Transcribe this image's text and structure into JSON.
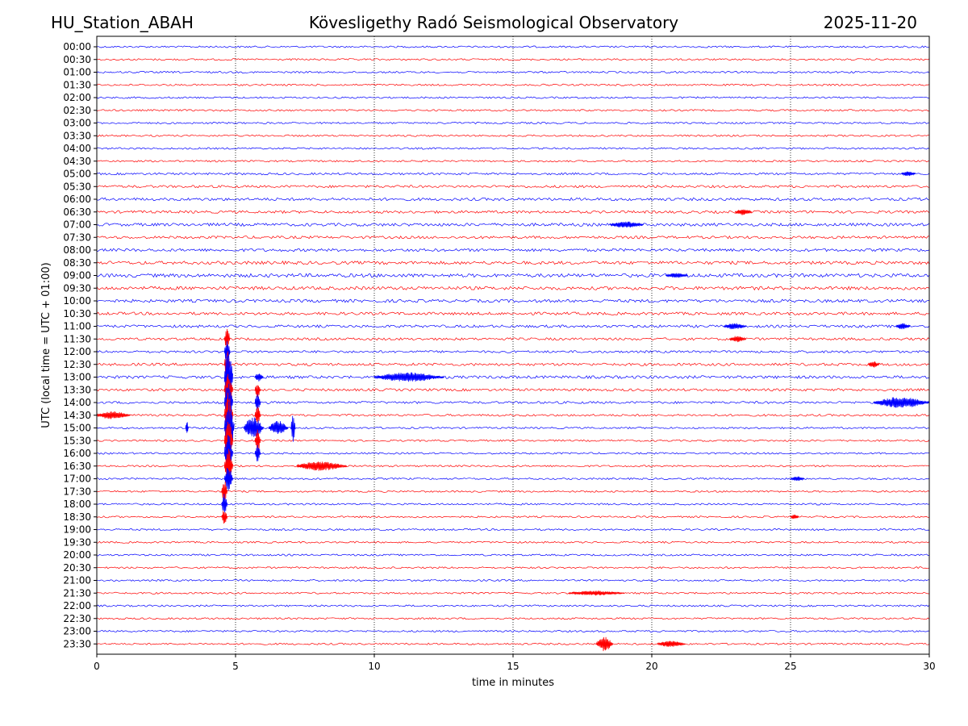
{
  "header": {
    "station": "HU_Station_ABAH",
    "observatory": "Kövesligethy Radó Seismological Observatory",
    "date": "2025-11-20"
  },
  "colors": {
    "odd": "#0000ff",
    "even": "#ff0000",
    "frame": "#000000",
    "grid": "#000000"
  },
  "chart_data": {
    "type": "line",
    "title": "Kövesligethy Radó Seismological Observatory",
    "xlabel": "time in minutes",
    "ylabel": "UTC (local time = UTC + 01:00)",
    "xlim": [
      0,
      30
    ],
    "xticks": [
      0,
      5,
      10,
      15,
      20,
      25,
      30
    ],
    "grid_x": [
      5,
      10,
      15,
      20,
      25
    ],
    "row_labels": [
      "00:00",
      "00:30",
      "01:00",
      "01:30",
      "02:00",
      "02:30",
      "03:00",
      "03:30",
      "04:00",
      "04:30",
      "05:00",
      "05:30",
      "06:00",
      "06:30",
      "07:00",
      "07:30",
      "08:00",
      "08:30",
      "09:00",
      "09:30",
      "10:00",
      "10:30",
      "11:00",
      "11:30",
      "12:00",
      "12:30",
      "13:00",
      "13:30",
      "14:00",
      "14:30",
      "15:00",
      "15:30",
      "16:00",
      "16:30",
      "17:00",
      "17:30",
      "18:00",
      "18:30",
      "19:00",
      "19:30",
      "20:00",
      "20:30",
      "21:00",
      "21:30",
      "22:00",
      "22:30",
      "23:00",
      "23:30"
    ],
    "row_noise": [
      1.0,
      1.0,
      1.0,
      1.0,
      1.0,
      1.0,
      1.0,
      1.0,
      1.0,
      1.0,
      1.2,
      1.4,
      1.6,
      1.5,
      1.7,
      1.5,
      1.6,
      1.8,
      2.0,
      1.9,
      1.7,
      1.6,
      1.5,
      1.4,
      1.3,
      1.5,
      1.6,
      1.4,
      1.3,
      1.2,
      1.0,
      1.0,
      1.0,
      1.0,
      1.0,
      1.0,
      1.0,
      1.0,
      1.0,
      1.0,
      1.0,
      1.0,
      1.0,
      1.0,
      1.0,
      1.0,
      1.0,
      1.0
    ],
    "events": [
      {
        "row": 10,
        "t": 29.0,
        "amp": 3,
        "dur": 0.5
      },
      {
        "row": 13,
        "t": 23.0,
        "amp": 4,
        "dur": 0.6
      },
      {
        "row": 14,
        "t": 18.5,
        "amp": 4,
        "dur": 1.2
      },
      {
        "row": 18,
        "t": 20.5,
        "amp": 3,
        "dur": 0.8
      },
      {
        "row": 22,
        "t": 22.6,
        "amp": 4,
        "dur": 0.8
      },
      {
        "row": 22,
        "t": 28.8,
        "amp": 4,
        "dur": 0.5
      },
      {
        "row": 23,
        "t": 22.8,
        "amp": 4,
        "dur": 0.6
      },
      {
        "row": 23,
        "t": 4.6,
        "amp": 14,
        "dur": 0.2
      },
      {
        "row": 24,
        "t": 4.6,
        "amp": 14,
        "dur": 0.2
      },
      {
        "row": 25,
        "t": 4.6,
        "amp": 20,
        "dur": 0.2
      },
      {
        "row": 25,
        "t": 27.8,
        "amp": 4,
        "dur": 0.4
      },
      {
        "row": 26,
        "t": 4.6,
        "amp": 40,
        "dur": 0.3
      },
      {
        "row": 26,
        "t": 10.0,
        "amp": 6,
        "dur": 2.5
      },
      {
        "row": 26,
        "t": 5.7,
        "amp": 6,
        "dur": 0.3
      },
      {
        "row": 27,
        "t": 4.6,
        "amp": 24,
        "dur": 0.3
      },
      {
        "row": 27,
        "t": 5.7,
        "amp": 10,
        "dur": 0.2
      },
      {
        "row": 28,
        "t": 4.6,
        "amp": 30,
        "dur": 0.3
      },
      {
        "row": 28,
        "t": 28.0,
        "amp": 7,
        "dur": 2.0
      },
      {
        "row": 28,
        "t": 5.7,
        "amp": 12,
        "dur": 0.2
      },
      {
        "row": 29,
        "t": 0.0,
        "amp": 5,
        "dur": 1.2
      },
      {
        "row": 29,
        "t": 4.6,
        "amp": 30,
        "dur": 0.3
      },
      {
        "row": 29,
        "t": 5.7,
        "amp": 14,
        "dur": 0.2
      },
      {
        "row": 30,
        "t": 3.2,
        "amp": 8,
        "dur": 0.1
      },
      {
        "row": 30,
        "t": 4.6,
        "amp": 36,
        "dur": 0.35
      },
      {
        "row": 30,
        "t": 5.3,
        "amp": 14,
        "dur": 0.7
      },
      {
        "row": 30,
        "t": 6.2,
        "amp": 9,
        "dur": 0.7
      },
      {
        "row": 30,
        "t": 7.0,
        "amp": 18,
        "dur": 0.15
      },
      {
        "row": 31,
        "t": 4.6,
        "amp": 30,
        "dur": 0.3
      },
      {
        "row": 31,
        "t": 5.7,
        "amp": 14,
        "dur": 0.2
      },
      {
        "row": 32,
        "t": 4.6,
        "amp": 26,
        "dur": 0.3
      },
      {
        "row": 32,
        "t": 5.7,
        "amp": 12,
        "dur": 0.2
      },
      {
        "row": 33,
        "t": 4.6,
        "amp": 22,
        "dur": 0.3
      },
      {
        "row": 33,
        "t": 7.2,
        "amp": 6,
        "dur": 1.8
      },
      {
        "row": 34,
        "t": 4.6,
        "amp": 16,
        "dur": 0.3
      },
      {
        "row": 34,
        "t": 25.0,
        "amp": 3,
        "dur": 0.5
      },
      {
        "row": 35,
        "t": 4.5,
        "amp": 14,
        "dur": 0.2
      },
      {
        "row": 36,
        "t": 4.5,
        "amp": 14,
        "dur": 0.2
      },
      {
        "row": 37,
        "t": 4.5,
        "amp": 10,
        "dur": 0.2
      },
      {
        "row": 37,
        "t": 25.0,
        "amp": 3,
        "dur": 0.3
      },
      {
        "row": 43,
        "t": 17.0,
        "amp": 3,
        "dur": 2.0
      },
      {
        "row": 47,
        "t": 18.0,
        "amp": 9,
        "dur": 0.6
      },
      {
        "row": 47,
        "t": 20.2,
        "amp": 4,
        "dur": 1.0
      }
    ]
  }
}
